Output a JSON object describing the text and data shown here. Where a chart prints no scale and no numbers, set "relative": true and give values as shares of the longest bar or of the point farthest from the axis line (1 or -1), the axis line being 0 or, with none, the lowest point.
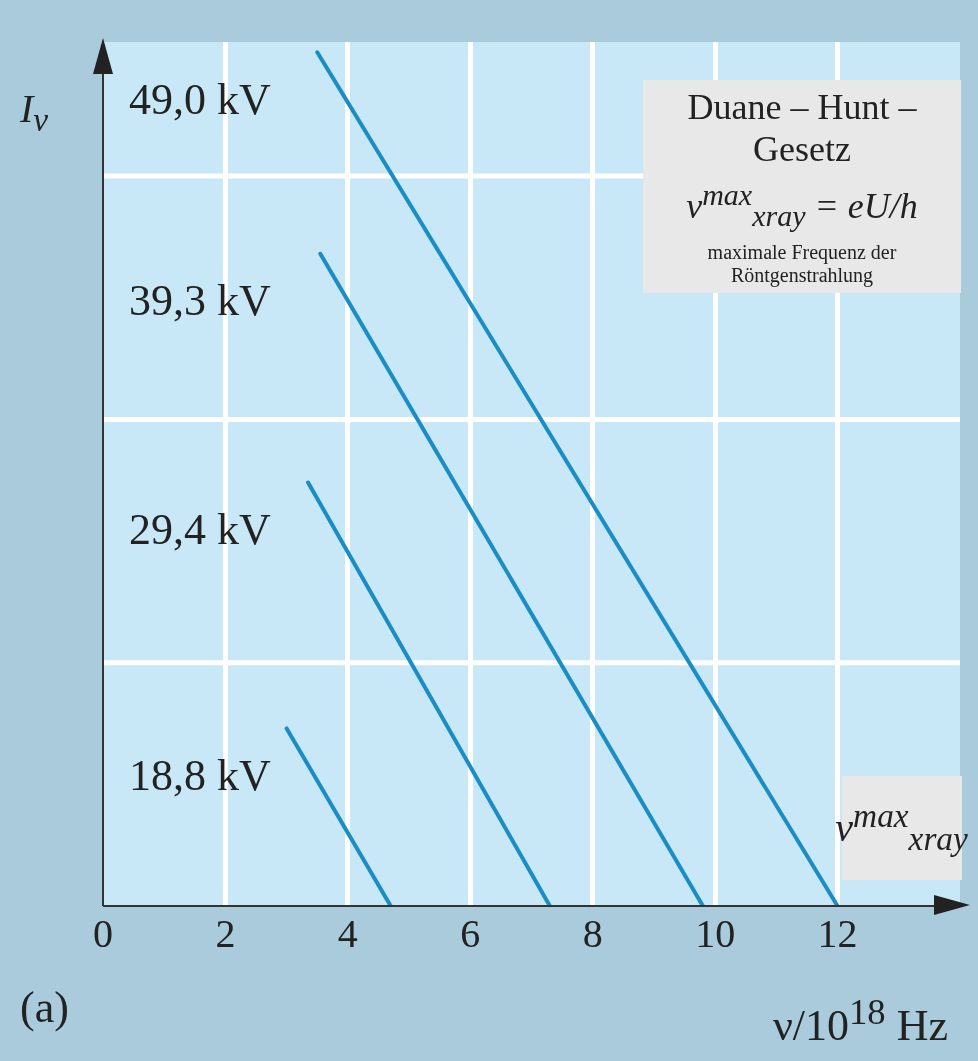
{
  "chart_data": {
    "type": "line",
    "relative": true,
    "xlabel": "ν/10$^{18}$ Hz",
    "ylabel": "I$_{ν}$",
    "xlim": [
      0,
      14
    ],
    "xticks": [
      0,
      2,
      4,
      6,
      8,
      10,
      12
    ],
    "grid": true,
    "legend": false,
    "marker": "none",
    "line_style": "solid",
    "series": [
      {
        "name": "49,0 kV",
        "color": "#1a8dc4",
        "x": [
          3.5,
          12.0
        ],
        "values": [
          1,
          0
        ]
      },
      {
        "name": "39,3 kV",
        "color": "#1a8dc4",
        "x": [
          3.55,
          9.8
        ],
        "values": [
          0.764,
          0
        ]
      },
      {
        "name": "29,4 kV",
        "color": "#1a8dc4",
        "x": [
          3.35,
          7.3
        ],
        "values": [
          0.496,
          0
        ]
      },
      {
        "name": "18,8 kV",
        "color": "#1a8dc4",
        "x": [
          3.0,
          4.7
        ],
        "values": [
          0.208,
          0
        ]
      }
    ],
    "annotations": [
      "Duane – Hunt – Gesetz",
      "ν$^{max}$$_{xray}$ = eU/h",
      "maximale Frequenz der Röntgenstrahlung",
      {
        "text": "ν$^{max}$$_{xray}$",
        "x": 12,
        "y": 0
      },
      "(a)"
    ]
  }
}
